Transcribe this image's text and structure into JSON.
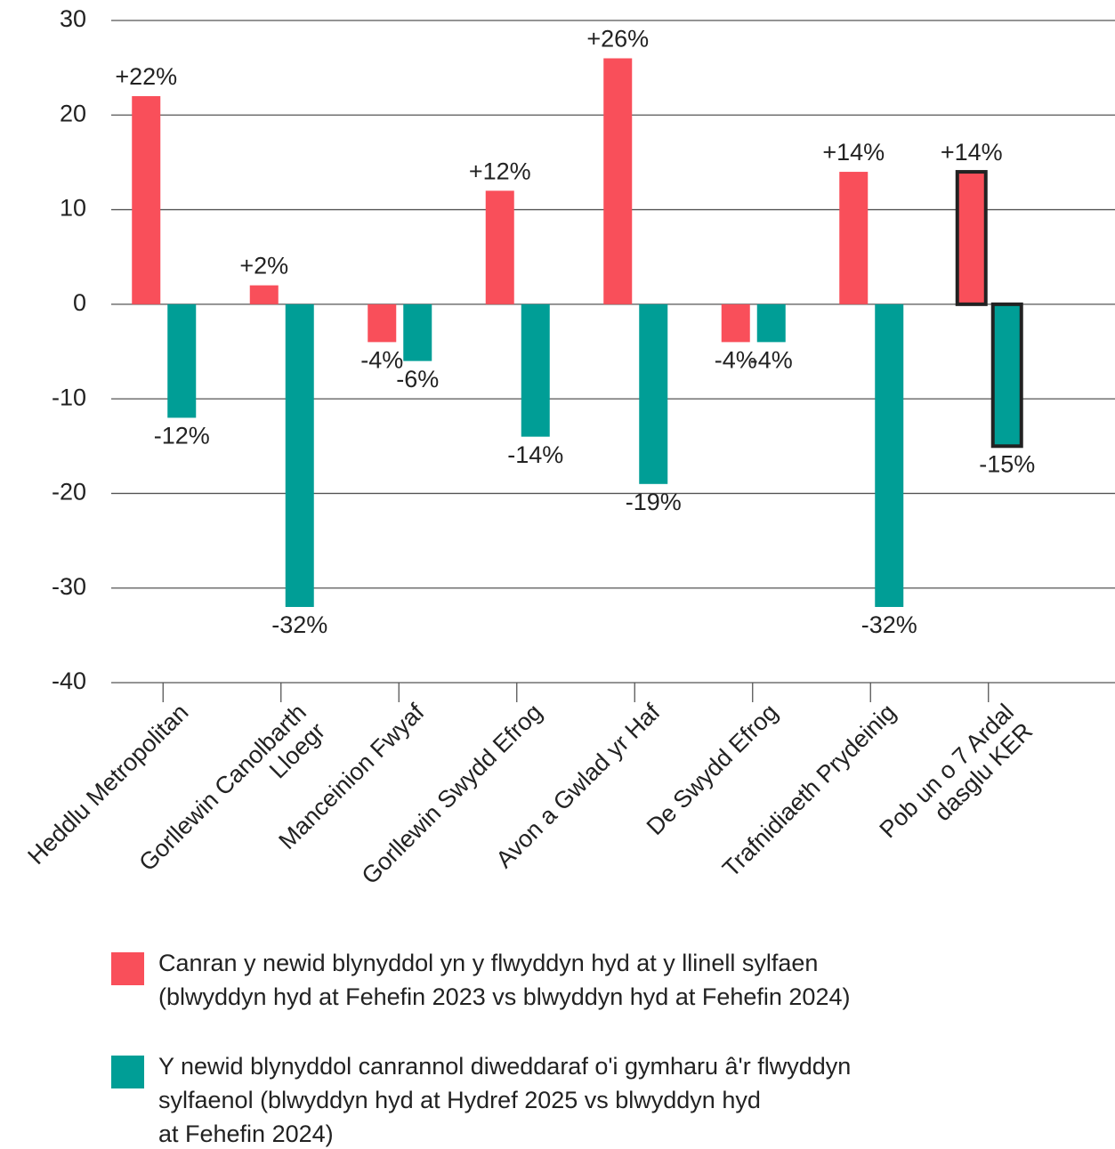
{
  "chart_data": {
    "type": "bar",
    "categories": [
      "Heddlu Metropolitan",
      "Gorllewin Canolbarth\nLloegr",
      "Manceinion Fwyaf",
      "Gorllewin Swydd Efrog",
      "Avon a Gwlad yr Haf",
      "De Swydd Efrog",
      "Trafnidiaeth Prydeinig",
      "Pob un o 7 Ardal\ndasglu KER"
    ],
    "series": [
      {
        "name": "Canran y newid blynyddol yn y flwyddyn hyd at y llinell sylfaen\n(blwyddyn hyd at Fehefin 2023 vs blwyddyn hyd at Fehefin 2024)",
        "color": "#f94f5a",
        "values": [
          22,
          2,
          -4,
          12,
          26,
          -4,
          14,
          14
        ],
        "value_labels": [
          "+22%",
          "+2%",
          "-4%",
          "+12%",
          "+26%",
          "-4%",
          "+14%",
          "+14%"
        ]
      },
      {
        "name": "Y newid blynyddol canrannol diweddaraf o'i gymharu â'r flwyddyn\nsylfaenol (blwyddyn hyd at Hydref 2025 vs blwyddyn hyd\nat Fehefin 2024)",
        "color": "#009e96",
        "values": [
          -12,
          -32,
          -6,
          -14,
          -19,
          -4,
          -32,
          -15
        ],
        "value_labels": [
          "-12%",
          "-32%",
          "-6%",
          "-14%",
          "-19%",
          "-4%",
          "-32%",
          "-15%"
        ]
      }
    ],
    "highlight": "Pob un o 7 Ardal\ndasglu KER",
    "ylim": [
      -40,
      30
    ],
    "yticks": [
      -40,
      -30,
      -20,
      -10,
      0,
      10,
      20,
      30
    ],
    "grid": true
  }
}
